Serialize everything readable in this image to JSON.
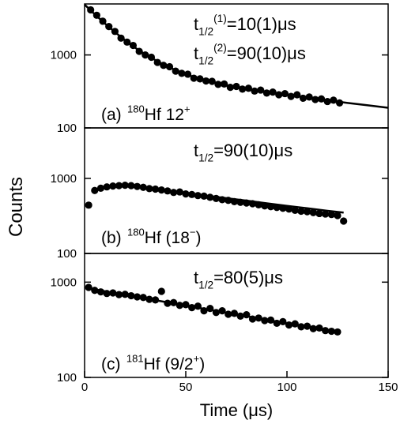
{
  "chart_data": {
    "type": "scatter",
    "ylabel": "Counts",
    "xlabel": "Time (μs)",
    "xlim": [
      0,
      150
    ],
    "xticks": [
      0,
      50,
      100,
      150
    ],
    "log_y": true,
    "color": "#000000",
    "panels": [
      {
        "ylim": [
          100,
          5000
        ],
        "yticks": [
          100,
          1000
        ],
        "points": {
          "x": [
            3,
            6,
            9,
            12,
            15,
            18,
            21,
            24,
            27,
            30,
            33,
            36,
            39,
            42,
            45,
            48,
            51,
            54,
            57,
            60,
            63,
            66,
            69,
            72,
            75,
            78,
            81,
            84,
            87,
            90,
            93,
            96,
            99,
            102,
            105,
            108,
            111,
            114,
            117,
            120,
            123,
            126
          ],
          "values": [
            4150,
            3500,
            2900,
            2450,
            2100,
            1700,
            1500,
            1350,
            1120,
            1000,
            930,
            790,
            720,
            690,
            600,
            560,
            545,
            480,
            470,
            440,
            435,
            395,
            400,
            360,
            370,
            340,
            350,
            320,
            330,
            300,
            310,
            285,
            295,
            270,
            285,
            255,
            265,
            245,
            250,
            230,
            240,
            220
          ]
        },
        "fit": {
          "x": [
            0,
            5,
            10,
            15,
            20,
            25,
            30,
            40,
            50,
            60,
            70,
            80,
            90,
            100,
            110,
            120,
            130,
            140,
            150
          ],
          "values": [
            4900,
            3618,
            2705,
            2054,
            1589,
            1255,
            1014,
            710,
            542,
            445,
            384,
            341,
            308,
            282,
            259,
            239,
            220,
            204,
            189
          ]
        },
        "annotations": [
          [
            {
              "text": "t"
            },
            {
              "text": "1/2",
              "style": "sub"
            },
            {
              "text": "(1)",
              "style": "sup"
            },
            {
              "text": "=10(1)μs"
            }
          ],
          [
            {
              "text": "t"
            },
            {
              "text": "1/2",
              "style": "sub"
            },
            {
              "text": "(2)",
              "style": "sup"
            },
            {
              "text": "=90(10)μs"
            }
          ]
        ],
        "label": [
          {
            "text": "(a)"
          },
          {
            "text": "180",
            "style": "sup"
          },
          {
            "text": "Hf 12"
          },
          {
            "text": "+",
            "style": "sup"
          }
        ]
      },
      {
        "ylim": [
          100,
          4700
        ],
        "yticks": [
          100,
          1000
        ],
        "points": {
          "x": [
            2,
            5,
            8,
            11,
            14,
            17,
            20,
            23,
            26,
            29,
            32,
            35,
            38,
            41,
            44,
            47,
            50,
            53,
            56,
            59,
            62,
            65,
            68,
            71,
            74,
            77,
            80,
            83,
            86,
            89,
            92,
            95,
            98,
            101,
            104,
            107,
            110,
            113,
            116,
            119,
            122,
            125,
            128
          ],
          "values": [
            440,
            690,
            740,
            770,
            790,
            800,
            810,
            800,
            780,
            760,
            730,
            720,
            700,
            680,
            650,
            660,
            620,
            610,
            590,
            580,
            560,
            540,
            520,
            510,
            490,
            480,
            470,
            460,
            445,
            430,
            420,
            410,
            400,
            390,
            375,
            365,
            360,
            350,
            340,
            335,
            330,
            320,
            270
          ]
        },
        "fit": {
          "x": [
            5,
            10,
            15,
            20,
            30,
            40,
            50,
            60,
            70,
            80,
            90,
            100,
            110,
            120,
            128
          ],
          "values": [
            690,
            760,
            790,
            800,
            740,
            690,
            635,
            590,
            545,
            505,
            465,
            430,
            400,
            370,
            350
          ]
        },
        "annotations": [
          [
            {
              "text": "t"
            },
            {
              "text": "1/2",
              "style": "sub"
            },
            {
              "text": "=90(10)μs"
            }
          ]
        ],
        "label": [
          {
            "text": "(b)"
          },
          {
            "text": "180",
            "style": "sup"
          },
          {
            "text": "Hf (18"
          },
          {
            "text": "−",
            "style": "sup"
          },
          {
            "text": ")"
          }
        ]
      },
      {
        "ylim": [
          100,
          2000
        ],
        "yticks": [
          100,
          1000
        ],
        "points": {
          "x": [
            2,
            5,
            8,
            11,
            14,
            17,
            20,
            23,
            26,
            29,
            32,
            35,
            38,
            41,
            44,
            47,
            50,
            53,
            56,
            59,
            62,
            65,
            68,
            71,
            74,
            77,
            80,
            83,
            86,
            89,
            92,
            95,
            98,
            101,
            104,
            107,
            110,
            113,
            116,
            119,
            122,
            125
          ],
          "values": [
            880,
            820,
            790,
            760,
            770,
            740,
            745,
            720,
            700,
            690,
            660,
            650,
            800,
            600,
            610,
            570,
            580,
            540,
            560,
            500,
            530,
            480,
            500,
            460,
            470,
            440,
            455,
            410,
            420,
            395,
            400,
            370,
            385,
            355,
            365,
            340,
            345,
            325,
            330,
            310,
            305,
            300
          ]
        },
        "fit": {
          "x": [
            2,
            20,
            40,
            60,
            80,
            100,
            125
          ],
          "values": [
            860,
            735,
            618,
            520,
            439,
            369,
            295
          ]
        },
        "annotations": [
          [
            {
              "text": "t"
            },
            {
              "text": "1/2",
              "style": "sub"
            },
            {
              "text": "=80(5)μs"
            }
          ]
        ],
        "label": [
          {
            "text": "(c)"
          },
          {
            "text": "181",
            "style": "sup"
          },
          {
            "text": "Hf (9/2"
          },
          {
            "text": "+",
            "style": "sup"
          },
          {
            "text": ")"
          }
        ]
      }
    ]
  }
}
